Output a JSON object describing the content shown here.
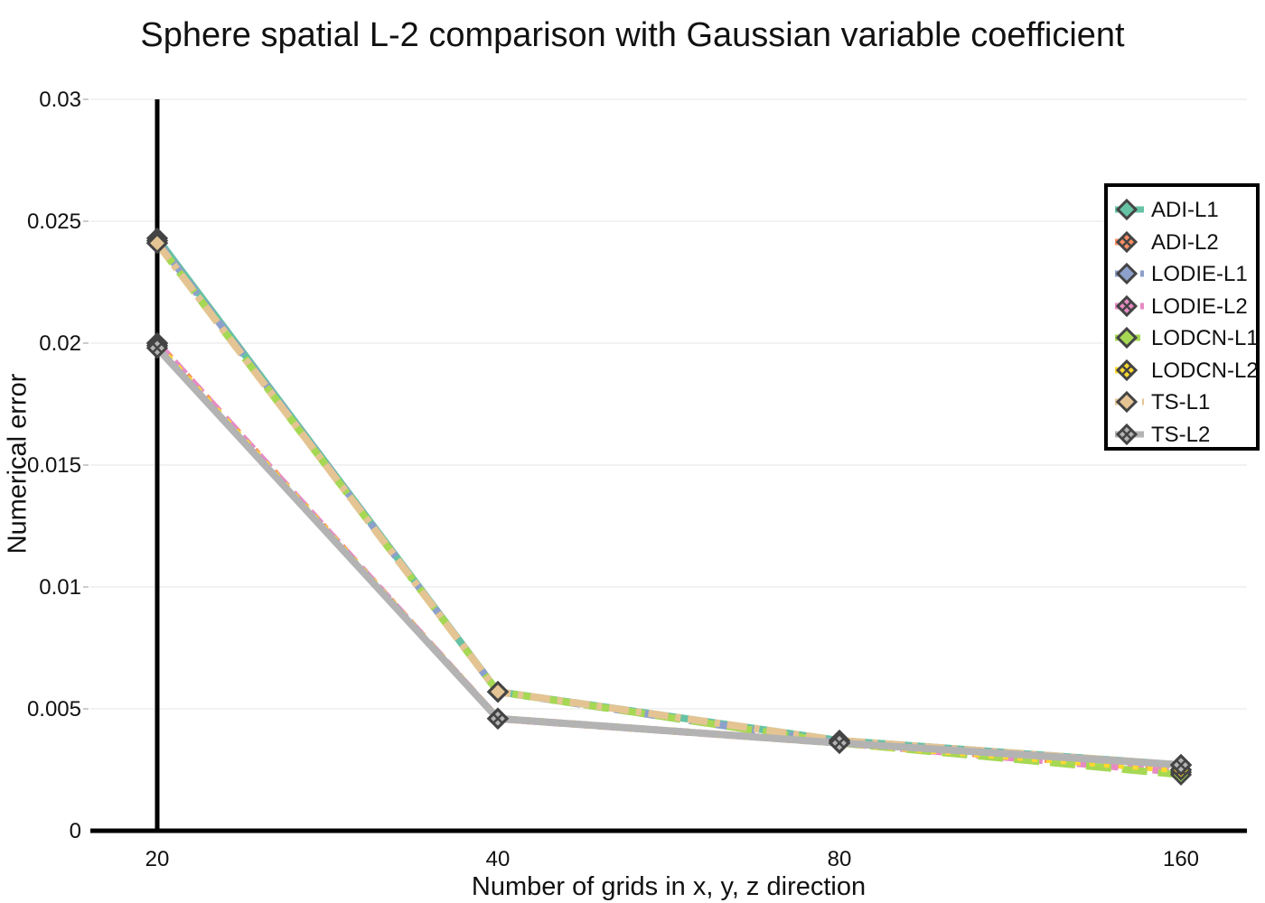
{
  "chart_data": {
    "type": "line",
    "title": "Sphere spatial L-2 comparison with Gaussian variable coefficient",
    "xlabel": "Number of grids in x, y, z direction",
    "ylabel": "Numerical error",
    "categories": [
      "20",
      "40",
      "80",
      "160"
    ],
    "yticks": [
      "0",
      "0.005",
      "0.01",
      "0.015",
      "0.02",
      "0.025",
      "0.03"
    ],
    "ylim": [
      0,
      0.03
    ],
    "grid": true,
    "legend_position": "right",
    "series": [
      {
        "name": "ADI-L1",
        "values": [
          0.0243,
          0.0057,
          0.0037,
          0.0027
        ],
        "color": "#66c2a5",
        "marker": "diamond",
        "dash": "solid"
      },
      {
        "name": "ADI-L2",
        "values": [
          0.02,
          0.0046,
          0.0036,
          0.0025
        ],
        "color": "#fc8d62",
        "marker": "x",
        "dash": "dot"
      },
      {
        "name": "LODIE-L1",
        "values": [
          0.0242,
          0.0057,
          0.0036,
          0.0027
        ],
        "color": "#8da0cb",
        "marker": "diamond",
        "dash": "dash"
      },
      {
        "name": "LODIE-L2",
        "values": [
          0.02,
          0.0046,
          0.0036,
          0.0024
        ],
        "color": "#e78ac3",
        "marker": "x",
        "dash": "dash"
      },
      {
        "name": "LODCN-L1",
        "values": [
          0.0241,
          0.0057,
          0.0036,
          0.0023
        ],
        "color": "#a6d854",
        "marker": "diamond",
        "dash": "longdash"
      },
      {
        "name": "LODCN-L2",
        "values": [
          0.0199,
          0.0046,
          0.0036,
          0.0025
        ],
        "color": "#ffd92f",
        "marker": "x",
        "dash": "dot"
      },
      {
        "name": "TS-L1",
        "values": [
          0.0241,
          0.0057,
          0.0037,
          0.0027
        ],
        "color": "#e5c494",
        "marker": "diamond",
        "dash": "dashdot"
      },
      {
        "name": "TS-L2",
        "values": [
          0.0198,
          0.0046,
          0.0036,
          0.0027
        ],
        "color": "#b3b3b3",
        "marker": "x",
        "dash": "solid"
      }
    ]
  }
}
